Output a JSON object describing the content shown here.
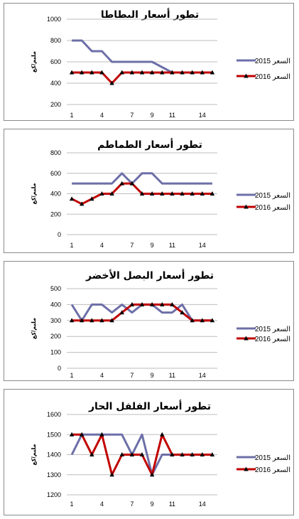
{
  "colors": {
    "s2015": "#6d6fa8",
    "s2016": "#c00000",
    "grid": "#bdbdbd"
  },
  "chart_data": [
    {
      "type": "line",
      "title": "تطور أسعار البطاطا",
      "ylabel": "مليم/كغ",
      "x": [
        1,
        2,
        3,
        4,
        5,
        6,
        7,
        8,
        9,
        10,
        11,
        12,
        13,
        14,
        15
      ],
      "xticks": [
        1,
        4,
        7,
        9,
        11,
        14
      ],
      "ylim": [
        200,
        1000
      ],
      "yticks": [
        200,
        400,
        600,
        800,
        1000
      ],
      "grid": true,
      "legend_position": "right",
      "series": [
        {
          "name": "2015 السعر",
          "values": [
            800,
            800,
            700,
            700,
            600,
            600,
            600,
            600,
            600,
            550,
            500,
            500,
            500,
            500,
            500
          ],
          "color": "#6d6fa8",
          "marker": "none"
        },
        {
          "name": "2016 السعر",
          "values": [
            500,
            500,
            500,
            500,
            400,
            500,
            500,
            500,
            500,
            500,
            500,
            500,
            500,
            500,
            500
          ],
          "color": "#c00000",
          "marker": "triangle"
        }
      ]
    },
    {
      "type": "line",
      "title": "تطور أسعار الطماطم",
      "ylabel": "مليم/كغ",
      "x": [
        1,
        2,
        3,
        4,
        5,
        6,
        7,
        8,
        9,
        10,
        11,
        12,
        13,
        14,
        15
      ],
      "xticks": [
        1,
        4,
        7,
        9,
        11,
        14
      ],
      "ylim": [
        0,
        800
      ],
      "yticks": [
        0,
        200,
        400,
        600,
        800
      ],
      "grid": true,
      "legend_position": "right",
      "series": [
        {
          "name": "2015 السعر",
          "values": [
            500,
            500,
            500,
            500,
            500,
            600,
            500,
            600,
            600,
            500,
            500,
            500,
            500,
            500,
            500
          ],
          "color": "#6d6fa8",
          "marker": "none"
        },
        {
          "name": "2016 السعر",
          "values": [
            350,
            300,
            350,
            400,
            400,
            500,
            500,
            400,
            400,
            400,
            400,
            400,
            400,
            400,
            400
          ],
          "color": "#c00000",
          "marker": "triangle"
        }
      ]
    },
    {
      "type": "line",
      "title": "تطور أسعار البصل الأخضر",
      "ylabel": "مليم/كغ",
      "x": [
        1,
        2,
        3,
        4,
        5,
        6,
        7,
        8,
        9,
        10,
        11,
        12,
        13,
        14,
        15
      ],
      "xticks": [
        1,
        4,
        7,
        9,
        11,
        14
      ],
      "ylim": [
        0,
        500
      ],
      "yticks": [
        0,
        100,
        200,
        300,
        400,
        500
      ],
      "grid": true,
      "legend_position": "right",
      "series": [
        {
          "name": "2015 السعر",
          "values": [
            400,
            300,
            400,
            400,
            350,
            400,
            350,
            400,
            400,
            350,
            350,
            400,
            300,
            300,
            300
          ],
          "color": "#6d6fa8",
          "marker": "none"
        },
        {
          "name": "2016 السعر",
          "values": [
            300,
            300,
            300,
            300,
            300,
            350,
            400,
            400,
            400,
            400,
            400,
            350,
            300,
            300,
            300
          ],
          "color": "#c00000",
          "marker": "triangle"
        }
      ]
    },
    {
      "type": "line",
      "title": "تطور أسعار الفلفل الحار",
      "ylabel": "مليم/كغ",
      "x": [
        1,
        2,
        3,
        4,
        5,
        6,
        7,
        8,
        9,
        10,
        11,
        12,
        13,
        14,
        15
      ],
      "xticks": [
        1,
        4,
        7,
        9,
        11,
        14
      ],
      "ylim": [
        1200,
        1600
      ],
      "yticks": [
        1200,
        1300,
        1400,
        1500,
        1600
      ],
      "grid": true,
      "legend_position": "right",
      "series": [
        {
          "name": "2015 السعر",
          "values": [
            1400,
            1500,
            1500,
            1500,
            1500,
            1500,
            1400,
            1500,
            1300,
            1400,
            1400,
            1400,
            1400,
            1400,
            1400
          ],
          "color": "#6d6fa8",
          "marker": "none"
        },
        {
          "name": "2016 السعر",
          "values": [
            1500,
            1500,
            1400,
            1500,
            1300,
            1400,
            1400,
            1400,
            1300,
            1500,
            1400,
            1400,
            1400,
            1400,
            1400
          ],
          "color": "#c00000",
          "marker": "triangle"
        }
      ]
    }
  ]
}
